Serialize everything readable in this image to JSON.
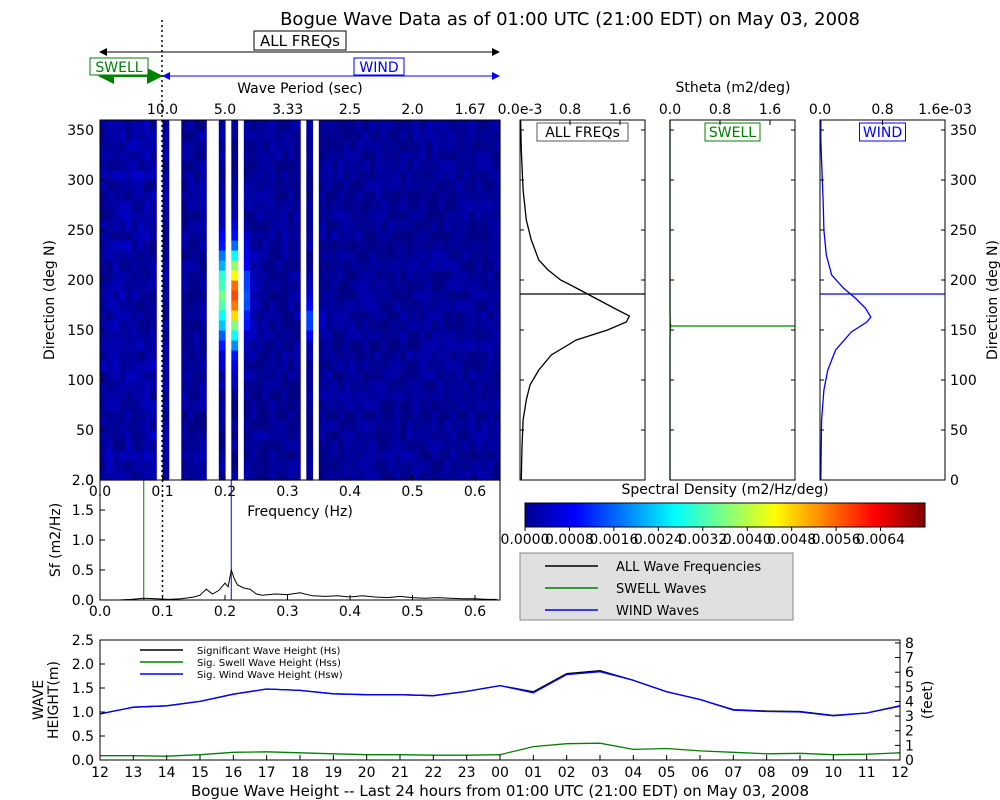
{
  "title": "Bogue Wave Data as of 01:00 UTC (21:00 EDT) on May 03, 2008",
  "bands": {
    "all_label": "ALL FREQs",
    "swell_label": "SWELL",
    "wind_label": "WIND",
    "period_label": "Wave Period (sec)",
    "period_ticks": [
      "10.0",
      "5.0",
      "3.33",
      "2.5",
      "2.0",
      "1.67"
    ]
  },
  "colors": {
    "all": "#000000",
    "swell": "#008000",
    "wind": "#0000ff",
    "legend_bg": "#e0e0e0"
  },
  "chart_data": [
    {
      "id": "directional-spectrum",
      "type": "heatmap",
      "xlabel": "Frequency (Hz)",
      "ylabel": "Direction (deg N)",
      "xlim": [
        0.0,
        0.64
      ],
      "ylim": [
        0,
        360
      ],
      "x_ticks": [
        "0.0",
        "0.1",
        "0.2",
        "0.3",
        "0.4",
        "0.5",
        "0.6"
      ],
      "y_ticks": [
        "0",
        "50",
        "100",
        "150",
        "200",
        "250",
        "300",
        "350"
      ],
      "colorbar": {
        "label": "Spectral Density (m2/Hz/deg)",
        "range": [
          0.0,
          0.0072
        ],
        "ticks": [
          "0.0000",
          "0.0008",
          "0.0016",
          "0.0024",
          "0.0032",
          "0.0040",
          "0.0048",
          "0.0056",
          "0.0064"
        ]
      },
      "hotspot": {
        "frequency": 0.21,
        "direction": 185,
        "value": 0.0058
      }
    },
    {
      "id": "stheta-all",
      "type": "line",
      "top_label": "Stheta (m2/deg)",
      "box_label": "ALL FREQs",
      "x_ticks": [
        "0.0e-3",
        "0.8",
        "1.6"
      ],
      "xlim": [
        0.0,
        0.002
      ],
      "ylim": [
        0,
        360
      ],
      "mean_direction": 186,
      "series": [
        {
          "x": [
            2e-05,
            3e-05,
            5e-05,
            0.0001,
            0.00016,
            0.0003,
            0.0005,
            0.0009,
            0.0014,
            0.0017,
            0.00175,
            0.0015,
            0.0012,
            0.0009,
            0.00065,
            0.00045,
            0.0003,
            0.00018,
            0.0001,
            5e-05,
            2e-05,
            1e-05
          ],
          "y": [
            0,
            30,
            60,
            80,
            95,
            110,
            125,
            140,
            150,
            158,
            164,
            172,
            182,
            192,
            200,
            210,
            220,
            240,
            260,
            290,
            330,
            360
          ]
        }
      ]
    },
    {
      "id": "stheta-swell",
      "type": "line",
      "box_label": "SWELL",
      "x_ticks": [
        "0.0",
        "0.8",
        "1.6"
      ],
      "xlim": [
        0.0,
        0.002
      ],
      "ylim": [
        0,
        360
      ],
      "mean_direction": 154,
      "series": [
        {
          "x": [
            0.0,
            0.0,
            3e-06,
            1.2e-05,
            3e-06,
            0.0,
            0.0
          ],
          "y": [
            0,
            140,
            150,
            154,
            158,
            170,
            360
          ]
        }
      ]
    },
    {
      "id": "stheta-wind",
      "type": "line",
      "box_label": "WIND",
      "x_ticks": [
        "0.0",
        "0.8",
        "1.6e-03"
      ],
      "xlim": [
        0.0,
        0.0016
      ],
      "ylim": [
        0,
        360
      ],
      "mean_direction": 186,
      "y_ticks": [
        "0",
        "50",
        "100",
        "150",
        "200",
        "250",
        "300",
        "350"
      ],
      "ylabel": "Direction (deg N)",
      "series": [
        {
          "x": [
            1e-05,
            2e-05,
            5e-05,
            0.0001,
            0.0002,
            0.0004,
            0.0006,
            0.00065,
            0.00058,
            0.00045,
            0.0003,
            0.00015,
            8e-05,
            5e-05,
            4e-05,
            3e-05,
            1e-05,
            1e-05
          ],
          "y": [
            0,
            60,
            90,
            110,
            130,
            148,
            158,
            163,
            172,
            182,
            192,
            205,
            225,
            250,
            280,
            300,
            340,
            360
          ]
        }
      ]
    },
    {
      "id": "frequency-spectrum",
      "type": "line",
      "xlabel": "Frequency (Hz)",
      "ylabel": "Sf (m2/Hz)",
      "xlim": [
        0.0,
        0.64
      ],
      "ylim": [
        0.0,
        2.0
      ],
      "x_ticks": [
        "0.0",
        "0.1",
        "0.2",
        "0.3",
        "0.4",
        "0.5",
        "0.6"
      ],
      "y_ticks": [
        "0.0",
        "0.5",
        "1.0",
        "1.5",
        "2.0"
      ],
      "separation_frequency": 0.1,
      "swell_peak_frequency": 0.07,
      "wind_peak_frequency": 0.21,
      "series": [
        {
          "name": "ALL Wave Frequencies",
          "x": [
            0.03,
            0.05,
            0.07,
            0.09,
            0.11,
            0.13,
            0.15,
            0.16,
            0.17,
            0.18,
            0.19,
            0.2,
            0.205,
            0.21,
            0.215,
            0.22,
            0.23,
            0.24,
            0.25,
            0.26,
            0.28,
            0.3,
            0.32,
            0.34,
            0.36,
            0.38,
            0.4,
            0.42,
            0.44,
            0.46,
            0.48,
            0.5,
            0.52,
            0.54,
            0.56,
            0.58,
            0.6,
            0.62,
            0.635
          ],
          "y": [
            0.0,
            0.01,
            0.03,
            0.02,
            0.01,
            0.02,
            0.05,
            0.08,
            0.18,
            0.1,
            0.16,
            0.28,
            0.22,
            0.5,
            0.35,
            0.25,
            0.2,
            0.18,
            0.1,
            0.08,
            0.1,
            0.09,
            0.12,
            0.07,
            0.06,
            0.07,
            0.05,
            0.07,
            0.05,
            0.04,
            0.06,
            0.04,
            0.03,
            0.04,
            0.03,
            0.02,
            0.02,
            0.01,
            0.01
          ]
        }
      ]
    },
    {
      "id": "wave-height-history",
      "type": "line",
      "xlabel": "Bogue Wave Height -- Last 24 hours from 01:00 UTC (21:00 EDT) on May 03, 2008",
      "ylabel": "WAVE HEIGHT(m)",
      "ylabel_right": "(feet)",
      "categories": [
        "12",
        "13",
        "14",
        "15",
        "16",
        "17",
        "18",
        "19",
        "20",
        "21",
        "22",
        "23",
        "00",
        "01",
        "02",
        "03",
        "04",
        "05",
        "06",
        "07",
        "08",
        "09",
        "10",
        "11",
        "12"
      ],
      "ylim": [
        0.0,
        2.5
      ],
      "y_ticks": [
        "0.0",
        "0.5",
        "1.0",
        "1.5",
        "2.0",
        "2.5"
      ],
      "y2lim": [
        0,
        8.2
      ],
      "y2_ticks": [
        "0",
        "1",
        "2",
        "3",
        "4",
        "5",
        "6",
        "7",
        "8"
      ],
      "series": [
        {
          "name": "Significant Wave Height (Hs)",
          "color": "#000000",
          "values": [
            0.96,
            1.1,
            1.13,
            1.22,
            1.37,
            1.48,
            1.45,
            1.38,
            1.36,
            1.36,
            1.34,
            1.43,
            1.55,
            1.42,
            1.8,
            1.86,
            1.66,
            1.42,
            1.26,
            1.05,
            1.02,
            1.01,
            0.93,
            0.98,
            1.13
          ]
        },
        {
          "name": "Sig. Swell Wave Height (Hss)",
          "color": "#008000",
          "values": [
            0.09,
            0.09,
            0.08,
            0.11,
            0.16,
            0.17,
            0.15,
            0.13,
            0.11,
            0.11,
            0.1,
            0.1,
            0.11,
            0.28,
            0.34,
            0.35,
            0.22,
            0.24,
            0.19,
            0.16,
            0.13,
            0.14,
            0.11,
            0.12,
            0.15
          ]
        },
        {
          "name": "Sig. Wind Wave Height (Hsw)",
          "color": "#0000ff",
          "values": [
            0.96,
            1.1,
            1.13,
            1.22,
            1.37,
            1.48,
            1.45,
            1.38,
            1.36,
            1.36,
            1.34,
            1.43,
            1.55,
            1.4,
            1.78,
            1.84,
            1.66,
            1.42,
            1.26,
            1.04,
            1.01,
            1.0,
            0.92,
            0.98,
            1.12
          ]
        }
      ]
    }
  ]
}
